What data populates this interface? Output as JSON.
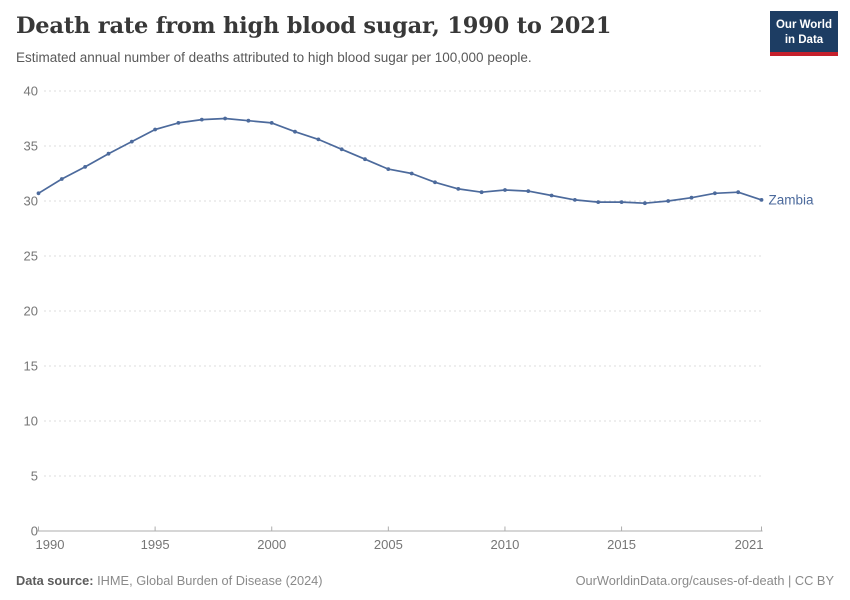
{
  "header": {
    "title": "Death rate from high blood sugar, 1990 to 2021",
    "subtitle": "Estimated annual number of deaths attributed to high blood sugar per 100,000 people."
  },
  "logo": {
    "line1": "Our World",
    "line2": "in Data",
    "bg_color": "#1d3d63",
    "stripe_color": "#c5202c"
  },
  "chart_data": {
    "type": "line",
    "title": "Death rate from high blood sugar, 1990 to 2021",
    "xlabel": "",
    "ylabel": "",
    "xlim": [
      1990,
      2021
    ],
    "ylim": [
      0,
      40
    ],
    "xticks": [
      1990,
      1995,
      2000,
      2005,
      2010,
      2015,
      2021
    ],
    "yticks": [
      0,
      5,
      10,
      15,
      20,
      25,
      30,
      35,
      40
    ],
    "grid": "horizontal-dashed",
    "legend_position": "end-of-line-label",
    "x": [
      1990,
      1991,
      1992,
      1993,
      1994,
      1995,
      1996,
      1997,
      1998,
      1999,
      2000,
      2001,
      2002,
      2003,
      2004,
      2005,
      2006,
      2007,
      2008,
      2009,
      2010,
      2011,
      2012,
      2013,
      2014,
      2015,
      2016,
      2017,
      2018,
      2019,
      2020,
      2021
    ],
    "series": [
      {
        "name": "Zambia",
        "color": "#4c6a9c",
        "values": [
          30.7,
          32.0,
          33.1,
          34.3,
          35.4,
          36.5,
          37.1,
          37.4,
          37.5,
          37.3,
          37.1,
          36.3,
          35.6,
          34.7,
          33.8,
          32.9,
          32.5,
          31.7,
          31.1,
          30.8,
          31.0,
          30.9,
          30.5,
          30.1,
          29.9,
          29.9,
          29.8,
          30.0,
          30.3,
          30.7,
          30.8,
          30.1
        ]
      }
    ]
  },
  "footer": {
    "datasource_label": "Data source:",
    "datasource_text": " IHME, Global Burden of Disease (2024)",
    "license": "OurWorldinData.org/causes-of-death | CC BY"
  },
  "colors": {
    "series_blue": "#4c6a9c",
    "gridline": "#dcdcdc",
    "axis": "#adadad",
    "tick_text": "#767676"
  }
}
